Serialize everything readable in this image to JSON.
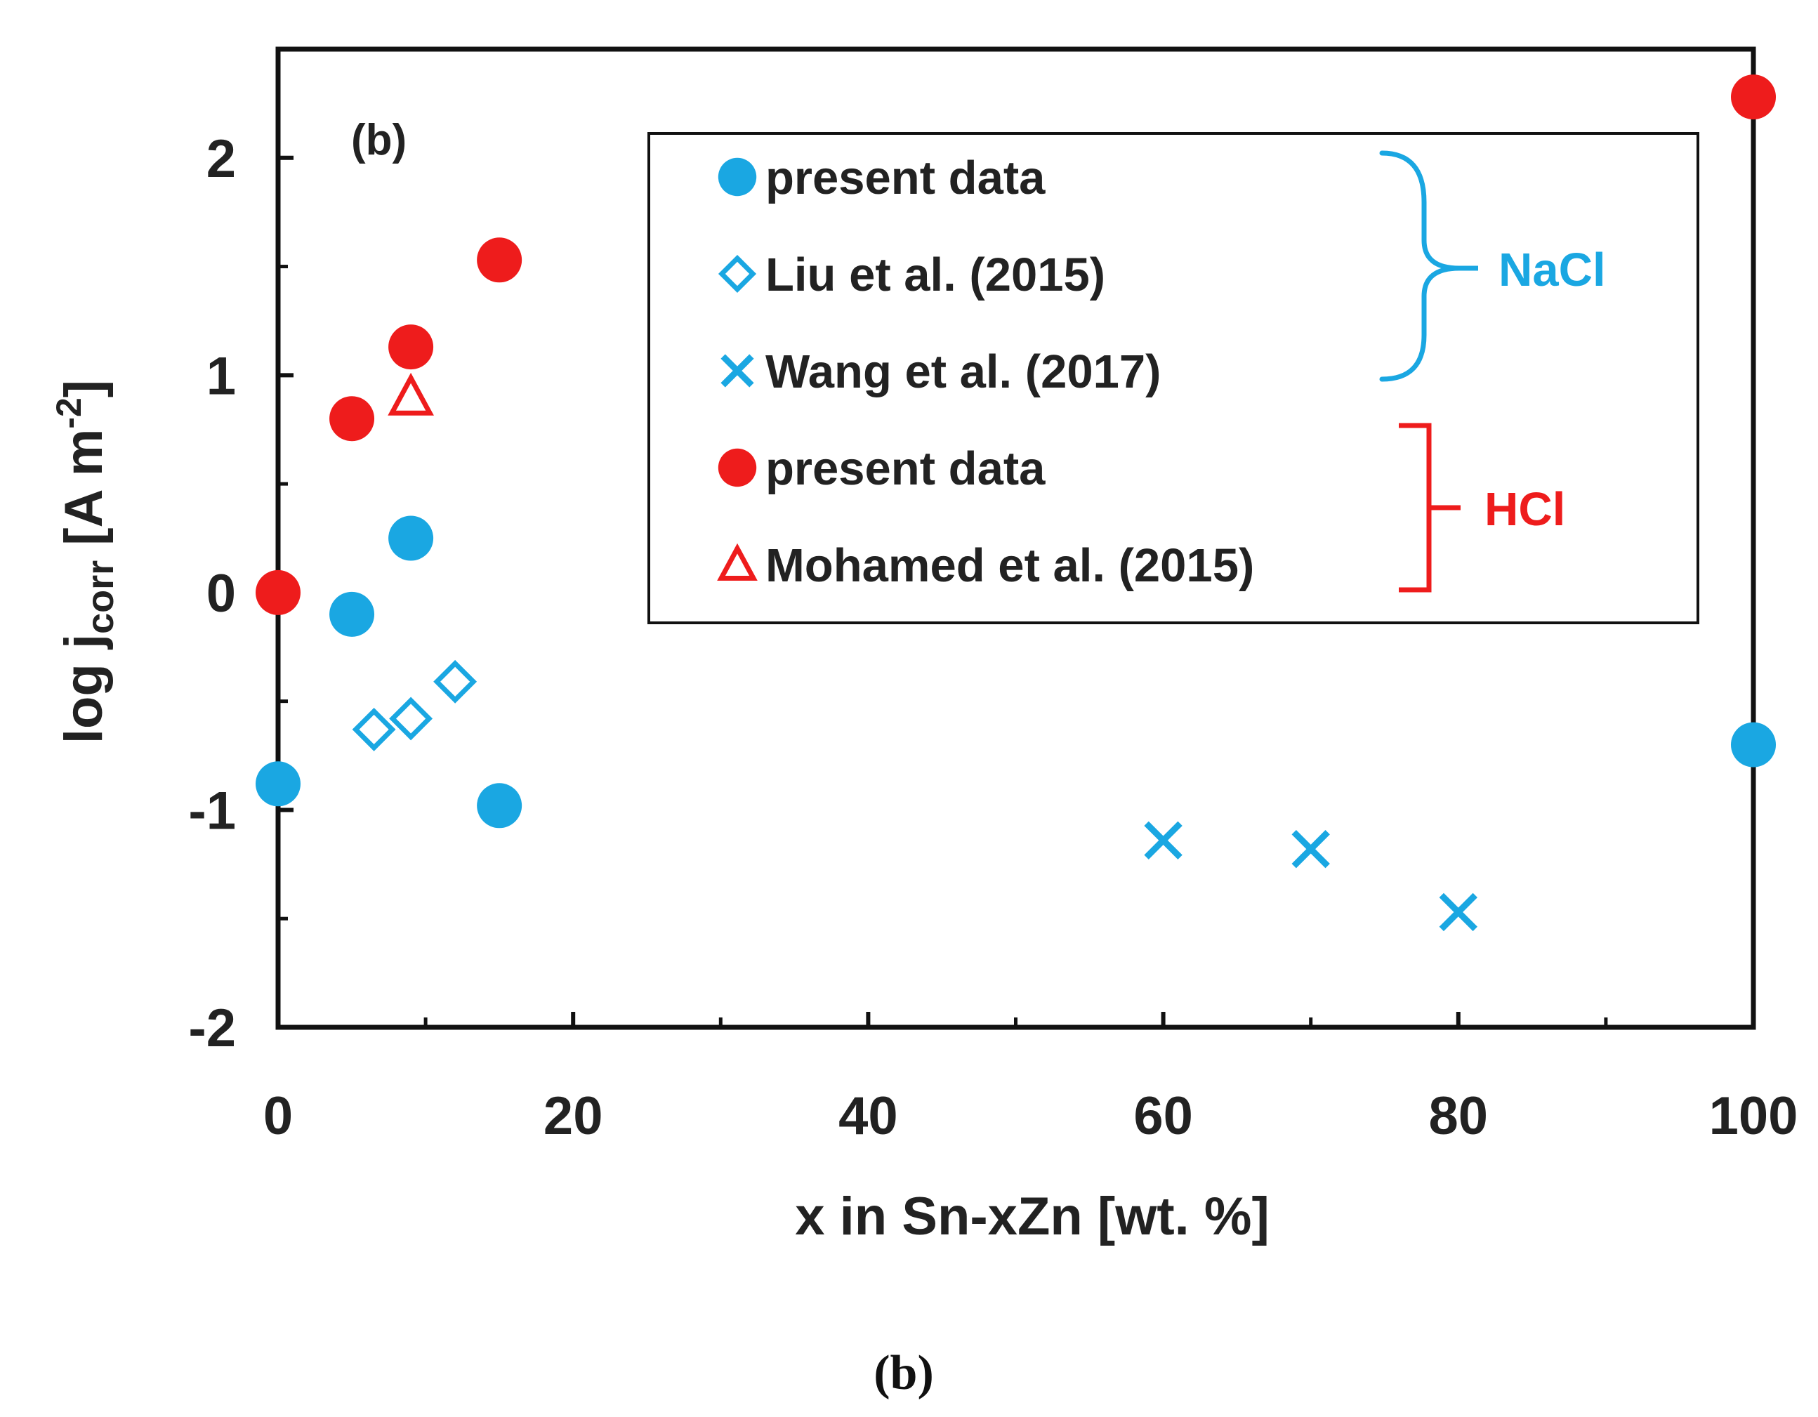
{
  "chart_data": {
    "type": "scatter",
    "panel_label": "(b)",
    "caption": "(b)",
    "xlabel": "x in Sn-xZn [wt. %]",
    "ylabel": {
      "main": "log j",
      "subscript": "corr",
      "unit": " [A m",
      "superscript": "-2",
      "close": "]"
    },
    "xlim": [
      0,
      100
    ],
    "ylim": [
      -2,
      2.5
    ],
    "x_ticks": [
      0,
      20,
      40,
      60,
      80,
      100
    ],
    "x_tick_labels": [
      "0",
      "20",
      "40",
      "60",
      "80",
      "100"
    ],
    "x_minor_ticks": [
      10,
      30,
      50,
      70,
      90
    ],
    "y_ticks": [
      -2,
      -1,
      0,
      1,
      2
    ],
    "y_tick_labels": [
      "-2",
      "-1",
      "0",
      "1",
      "2"
    ],
    "y_minor_ticks": [
      -1.5,
      -0.5,
      0.5,
      1.5
    ],
    "grid": false,
    "legend_position": "top-right",
    "series": [
      {
        "name": "present data",
        "group": "NaCl",
        "marker": "filled-circle",
        "color": "#1aa7e2",
        "x": [
          0,
          5,
          9,
          15,
          100
        ],
        "y": [
          -0.88,
          -0.1,
          0.25,
          -0.98,
          -0.7
        ]
      },
      {
        "name": "Liu et al. (2015)",
        "group": "NaCl",
        "marker": "open-diamond",
        "color": "#1aa7e2",
        "x": [
          6.5,
          9,
          12
        ],
        "y": [
          -0.63,
          -0.58,
          -0.41
        ]
      },
      {
        "name": "Wang et al. (2017)",
        "group": "NaCl",
        "marker": "cross",
        "color": "#1aa7e2",
        "x": [
          60,
          70,
          80
        ],
        "y": [
          -1.14,
          -1.18,
          -1.47
        ]
      },
      {
        "name": "present data",
        "group": "HCl",
        "marker": "filled-circle",
        "color": "#ee1c1c",
        "x": [
          0,
          5,
          9,
          15,
          100
        ],
        "y": [
          0.0,
          0.8,
          1.13,
          1.53,
          2.28
        ]
      },
      {
        "name": "Mohamed et al. (2015)",
        "group": "HCl",
        "marker": "open-triangle",
        "color": "#ee1c1c",
        "x": [
          9
        ],
        "y": [
          0.9
        ]
      }
    ],
    "groups": [
      {
        "name": "NaCl",
        "color": "#1aa7e2"
      },
      {
        "name": "HCl",
        "color": "#ee1c1c"
      }
    ]
  }
}
